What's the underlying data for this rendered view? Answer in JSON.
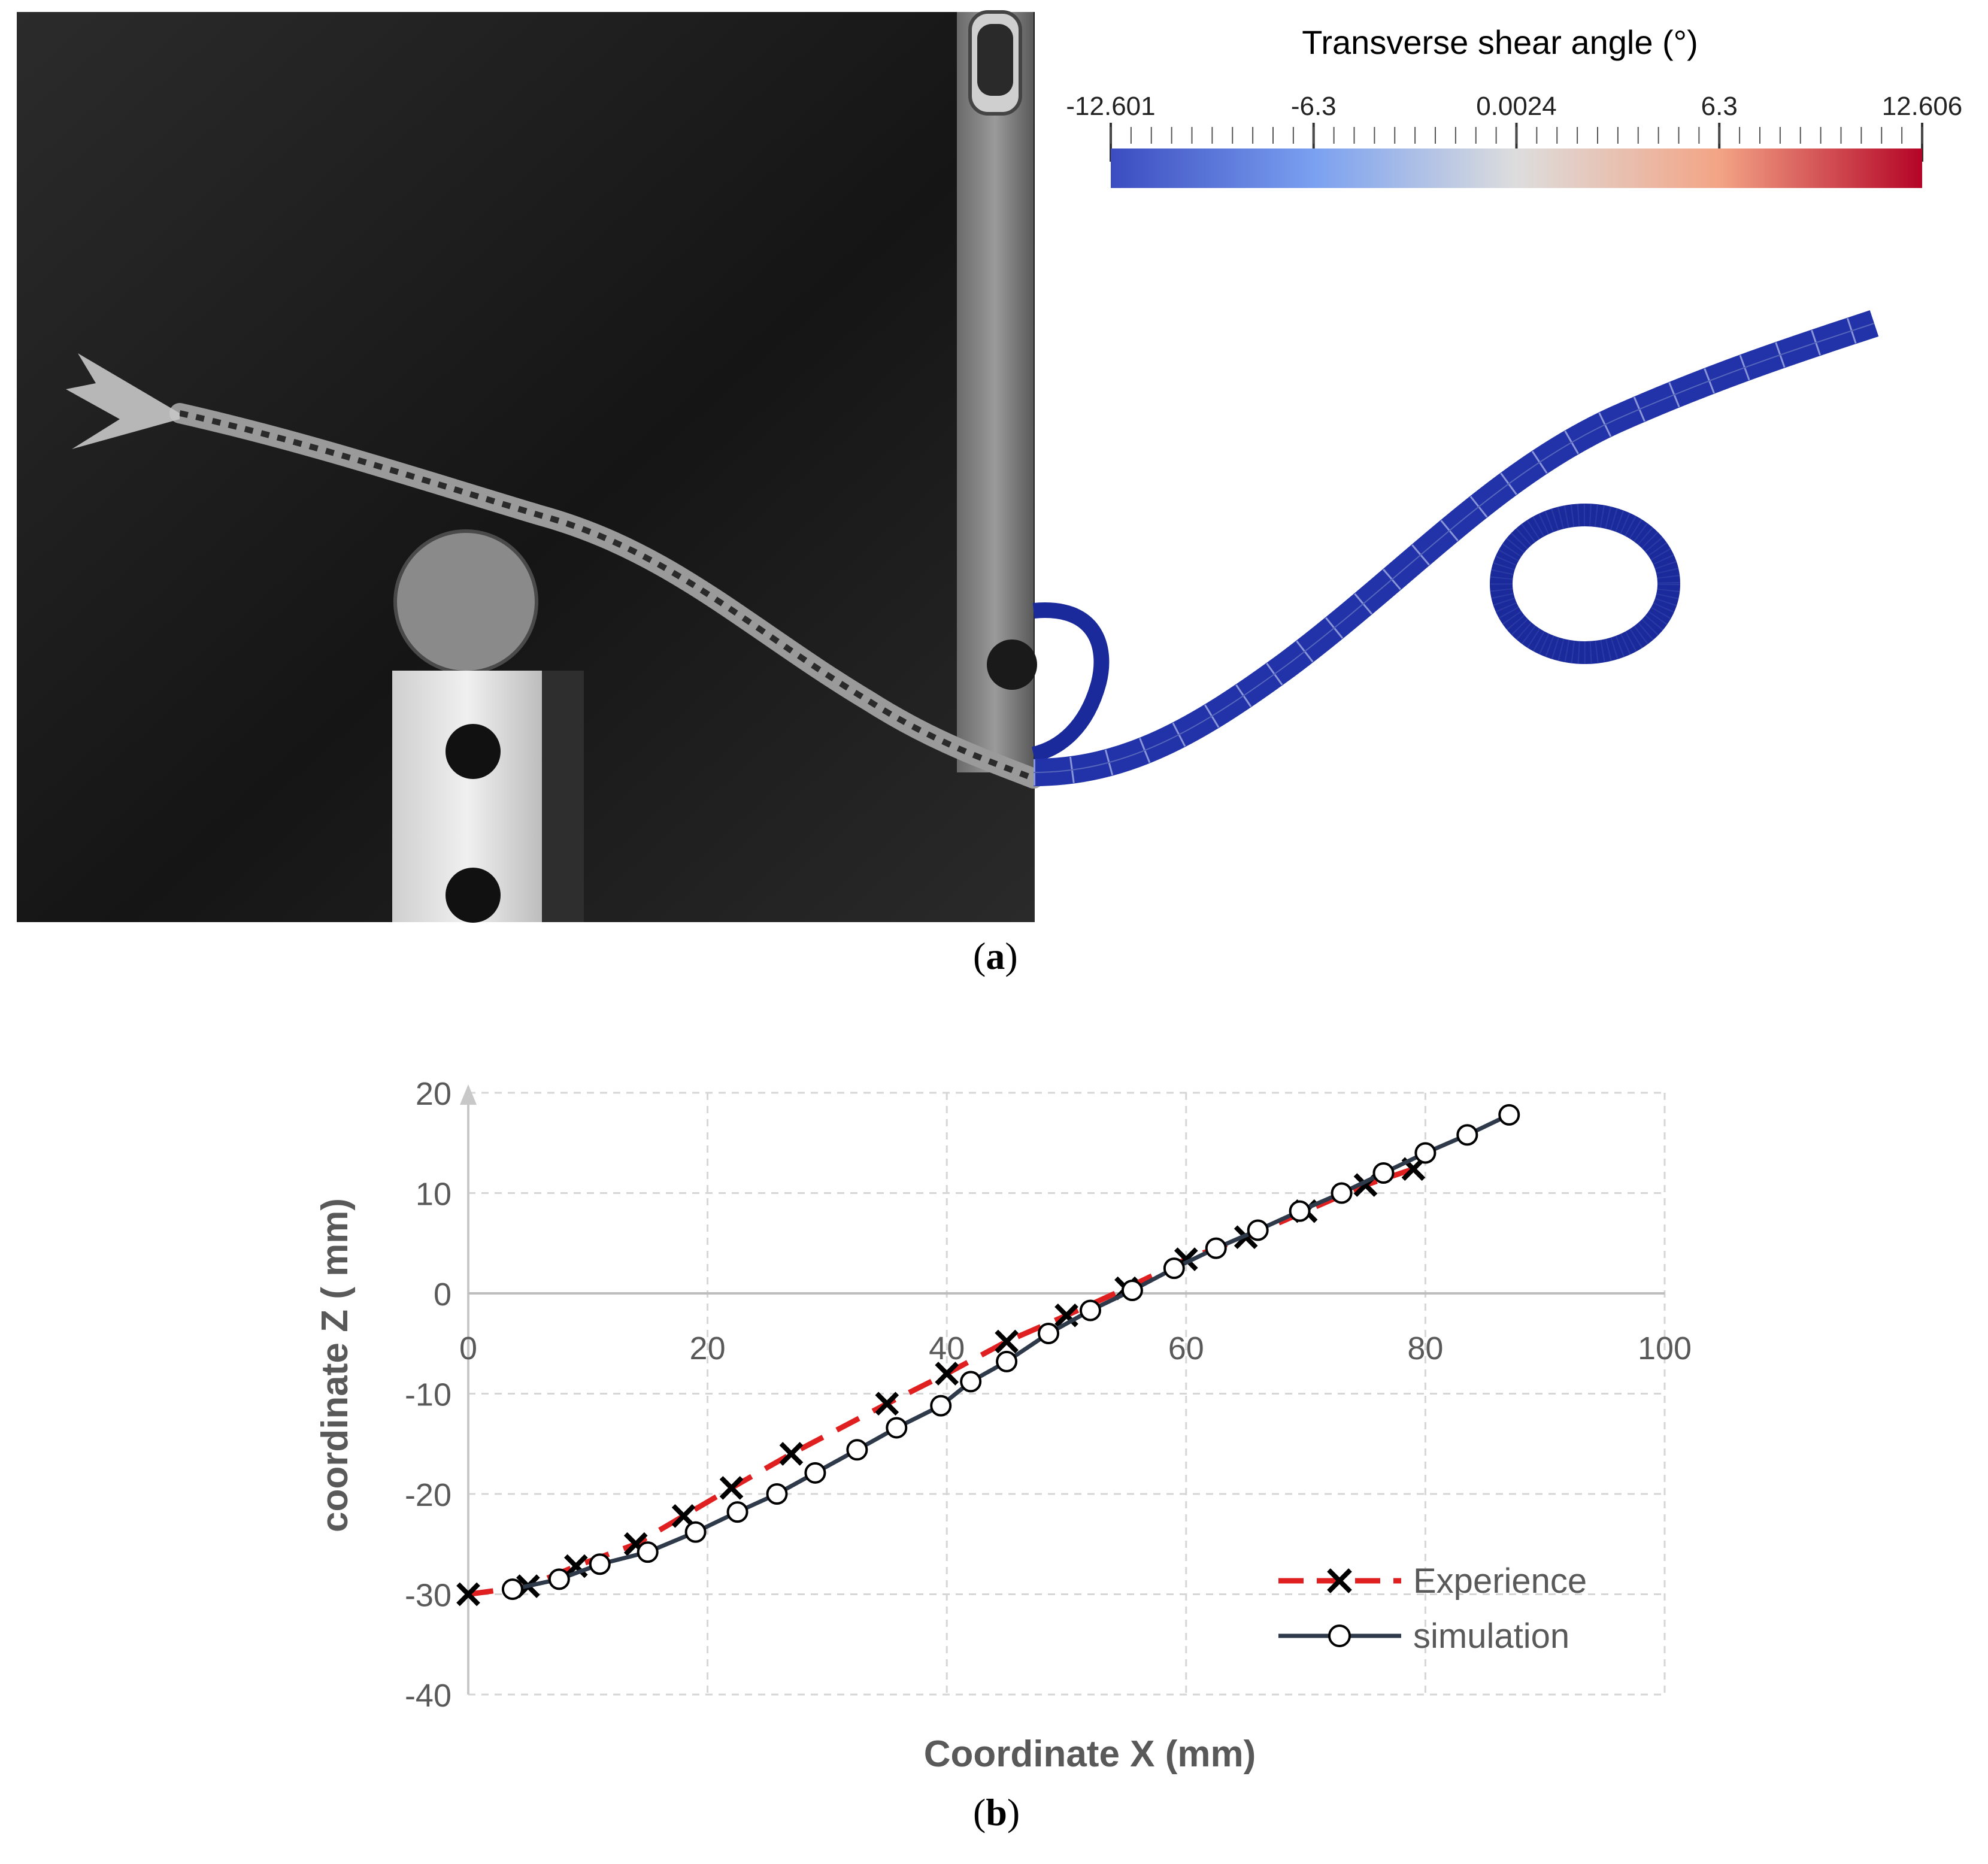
{
  "figure": {
    "panel_a_label": "a",
    "panel_b_label": "b"
  },
  "colorbar": {
    "title": "Transverse shear angle (°)",
    "tick_labels": [
      "-12.601",
      "-6.3",
      "0.0024",
      "6.3",
      "12.606"
    ],
    "min": -12.601,
    "max": 12.606,
    "colors": {
      "low": "#3b4cc0",
      "mid": "#dddddd",
      "high": "#b40426"
    }
  },
  "chart_data": {
    "type": "line",
    "xlabel": "Coordinate  X (mm)",
    "ylabel": "coordinate Z ( mm)",
    "xlim": [
      0,
      100
    ],
    "ylim": [
      -40,
      20
    ],
    "xticks": [
      0,
      20,
      40,
      60,
      80,
      100
    ],
    "yticks": [
      20,
      10,
      0,
      -10,
      -20,
      -30,
      -40
    ],
    "grid": true,
    "legend_position": "bottom-right",
    "series": [
      {
        "name": "Experience",
        "style": "dashed",
        "marker": "x",
        "color": "#e02020",
        "marker_color": "#000000",
        "x": [
          0,
          5,
          9,
          14,
          18,
          22,
          27,
          35,
          40,
          45,
          50,
          55,
          60,
          65,
          70,
          75,
          79
        ],
        "y": [
          -30,
          -29.2,
          -27.2,
          -25,
          -22.2,
          -19.4,
          -16,
          -11,
          -8,
          -4.8,
          -2.2,
          0.5,
          3.4,
          5.6,
          8.2,
          10.8,
          12.4
        ]
      },
      {
        "name": "simulation",
        "style": "solid",
        "marker": "circle",
        "color": "#2e3a4a",
        "marker_color": "#000000",
        "x": [
          3.7,
          7.6,
          11,
          15,
          19,
          22.5,
          25.8,
          29,
          32.5,
          35.8,
          39.5,
          42,
          45,
          48.5,
          52,
          55.5,
          59,
          62.5,
          66,
          69.5,
          73,
          76.5,
          80,
          83.5,
          87
        ],
        "y": [
          -29.5,
          -28.5,
          -27,
          -25.8,
          -23.8,
          -21.8,
          -20,
          -17.9,
          -15.6,
          -13.4,
          -11.2,
          -8.8,
          -6.8,
          -4,
          -1.7,
          0.3,
          2.5,
          4.5,
          6.3,
          8.2,
          10,
          12,
          14,
          15.8,
          17.8
        ]
      }
    ]
  }
}
